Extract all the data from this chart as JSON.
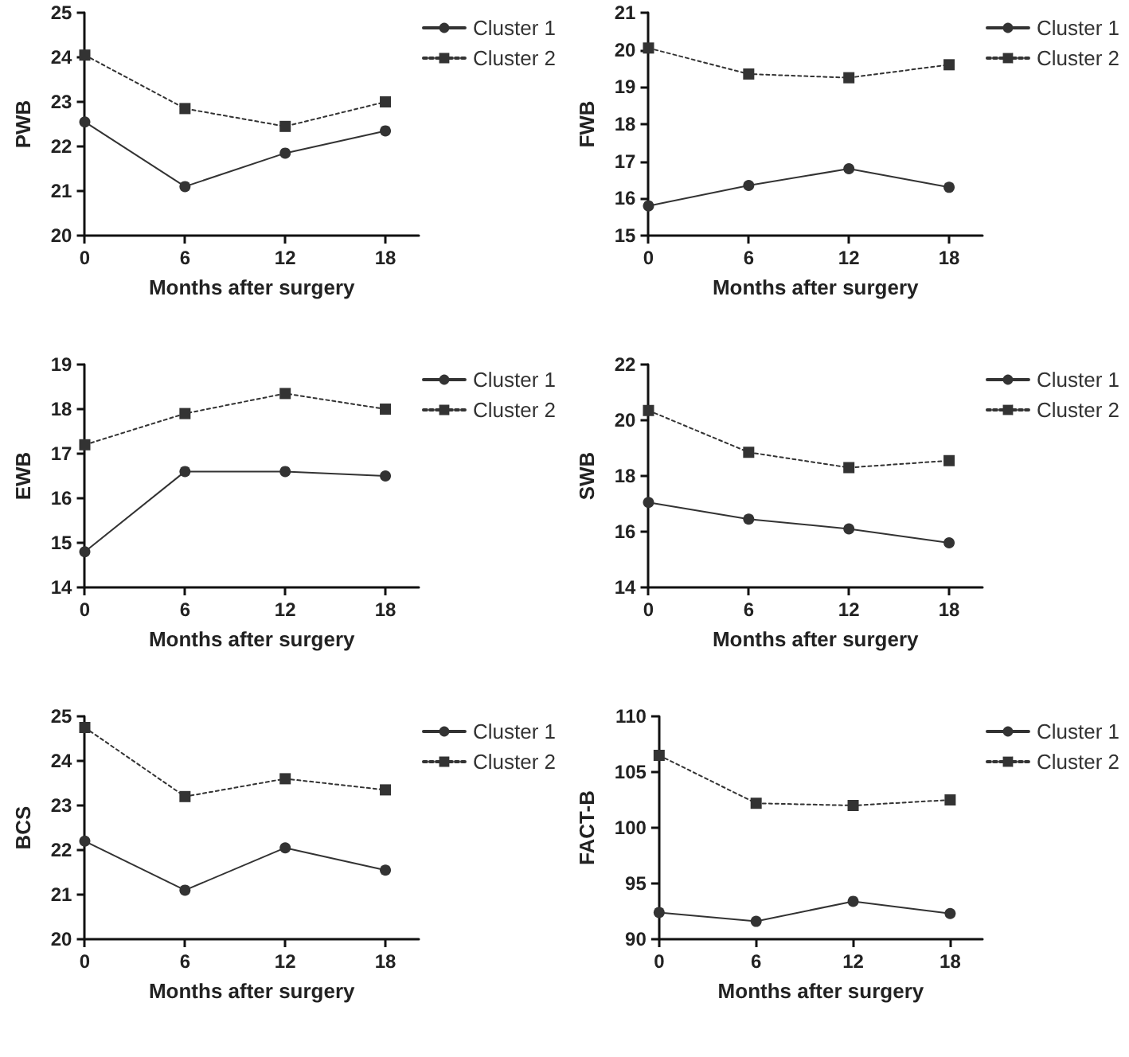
{
  "chart_data": [
    {
      "type": "line",
      "ylabel": "PWB",
      "xlabel": "Months after surgery",
      "x": [
        0,
        6,
        12,
        18
      ],
      "xlim": [
        0,
        20
      ],
      "xticks": [
        0,
        6,
        12,
        18
      ],
      "ylim": [
        20,
        25
      ],
      "yticks": [
        20,
        21,
        22,
        23,
        24,
        25
      ],
      "grid": false,
      "legend": "top right",
      "series": [
        {
          "name": "Cluster 1",
          "color": "#333333",
          "marker": "circle",
          "line_style": "solid",
          "values": [
            22.55,
            21.1,
            21.85,
            22.35
          ]
        },
        {
          "name": "Cluster 2",
          "color": "#333333",
          "marker": "square",
          "line_style": "dotted",
          "values": [
            24.05,
            22.85,
            22.45,
            23.0
          ]
        }
      ]
    },
    {
      "type": "line",
      "ylabel": "FWB",
      "xlabel": "Months after surgery",
      "x": [
        0,
        6,
        12,
        18
      ],
      "xlim": [
        0,
        20
      ],
      "xticks": [
        0,
        6,
        12,
        18
      ],
      "ylim": [
        15,
        21
      ],
      "yticks": [
        15,
        16,
        17,
        18,
        19,
        20,
        21
      ],
      "grid": false,
      "legend": "top right",
      "series": [
        {
          "name": "Cluster 1",
          "color": "#333333",
          "marker": "circle",
          "line_style": "solid",
          "values": [
            15.8,
            16.35,
            16.8,
            16.3
          ]
        },
        {
          "name": "Cluster 2",
          "color": "#333333",
          "marker": "square",
          "line_style": "dotted",
          "values": [
            20.05,
            19.35,
            19.25,
            19.6
          ]
        }
      ]
    },
    {
      "type": "line",
      "ylabel": "EWB",
      "xlabel": "Months after surgery",
      "x": [
        0,
        6,
        12,
        18
      ],
      "xlim": [
        0,
        20
      ],
      "xticks": [
        0,
        6,
        12,
        18
      ],
      "ylim": [
        14,
        19
      ],
      "yticks": [
        14,
        15,
        16,
        17,
        18,
        19
      ],
      "grid": false,
      "legend": "top right",
      "series": [
        {
          "name": "Cluster 1",
          "color": "#333333",
          "marker": "circle",
          "line_style": "solid",
          "values": [
            14.8,
            16.6,
            16.6,
            16.5
          ]
        },
        {
          "name": "Cluster 2",
          "color": "#333333",
          "marker": "square",
          "line_style": "dotted",
          "values": [
            17.2,
            17.9,
            18.35,
            18.0
          ]
        }
      ]
    },
    {
      "type": "line",
      "ylabel": "SWB",
      "xlabel": "Months after surgery",
      "x": [
        0,
        6,
        12,
        18
      ],
      "xlim": [
        0,
        20
      ],
      "xticks": [
        0,
        6,
        12,
        18
      ],
      "ylim": [
        14,
        22
      ],
      "yticks": [
        14,
        16,
        18,
        20,
        22
      ],
      "grid": false,
      "legend": "top right",
      "series": [
        {
          "name": "Cluster 1",
          "color": "#333333",
          "marker": "circle",
          "line_style": "solid",
          "values": [
            17.05,
            16.45,
            16.1,
            15.6
          ]
        },
        {
          "name": "Cluster 2",
          "color": "#333333",
          "marker": "square",
          "line_style": "dotted",
          "values": [
            20.35,
            18.85,
            18.3,
            18.55
          ]
        }
      ]
    },
    {
      "type": "line",
      "ylabel": "BCS",
      "xlabel": "Months after surgery",
      "x": [
        0,
        6,
        12,
        18
      ],
      "xlim": [
        0,
        20
      ],
      "xticks": [
        0,
        6,
        12,
        18
      ],
      "ylim": [
        20,
        25
      ],
      "yticks": [
        20,
        21,
        22,
        23,
        24,
        25
      ],
      "grid": false,
      "legend": "top right",
      "series": [
        {
          "name": "Cluster 1",
          "color": "#333333",
          "marker": "circle",
          "line_style": "solid",
          "values": [
            22.2,
            21.1,
            22.05,
            21.55
          ]
        },
        {
          "name": "Cluster 2",
          "color": "#333333",
          "marker": "square",
          "line_style": "dotted",
          "values": [
            24.75,
            23.2,
            23.6,
            23.35
          ]
        }
      ]
    },
    {
      "type": "line",
      "ylabel": "FACT-B",
      "xlabel": "Months after surgery",
      "x": [
        0,
        6,
        12,
        18
      ],
      "xlim": [
        0,
        20
      ],
      "xticks": [
        0,
        6,
        12,
        18
      ],
      "ylim": [
        90,
        110
      ],
      "yticks": [
        90,
        95,
        100,
        105,
        110
      ],
      "grid": false,
      "legend": "top right",
      "series": [
        {
          "name": "Cluster 1",
          "color": "#333333",
          "marker": "circle",
          "line_style": "solid",
          "values": [
            92.4,
            91.6,
            93.4,
            92.3
          ]
        },
        {
          "name": "Cluster 2",
          "color": "#333333",
          "marker": "square",
          "line_style": "dotted",
          "values": [
            106.5,
            102.2,
            102.0,
            102.5
          ]
        }
      ]
    }
  ]
}
